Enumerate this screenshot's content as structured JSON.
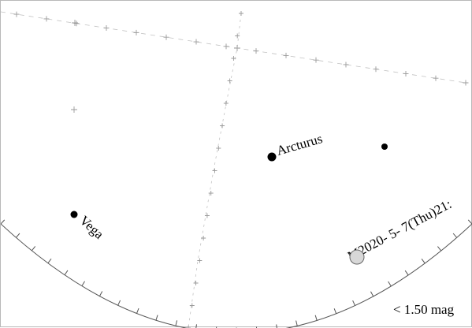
{
  "stars": [
    {
      "name": "Arcturus"
    },
    {
      "name": "Vega"
    }
  ],
  "moon_label": "M2020- 5- 7(Thu)21:",
  "magnitude_limit": "< 1.50 mag",
  "colors": {
    "grid": "#c2c2c2",
    "horizon": "#555555",
    "star": "#000000",
    "moon": "#d8d8d8"
  }
}
